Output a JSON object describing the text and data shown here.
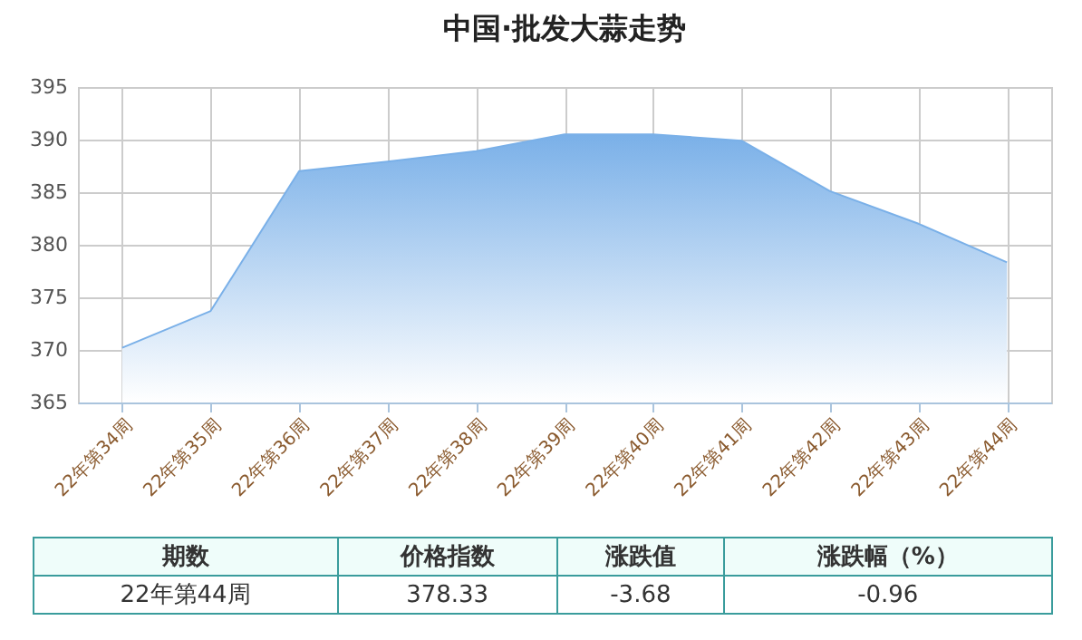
{
  "chart_data": {
    "type": "area",
    "title": "中国·批发大蒜走势",
    "categories": [
      "22年第34周",
      "22年第35周",
      "22年第36周",
      "22年第37周",
      "22年第38周",
      "22年第39周",
      "22年第40周",
      "22年第41周",
      "22年第42周",
      "22年第43周",
      "22年第44周"
    ],
    "values": [
      370.2,
      373.7,
      387.0,
      387.9,
      388.9,
      390.5,
      390.5,
      389.9,
      385.1,
      382.0,
      378.33
    ],
    "color": "#7ab0e8",
    "ylim": [
      365,
      395
    ],
    "yticks": [
      365,
      370,
      375,
      380,
      385,
      390,
      395
    ],
    "grid": true,
    "annotations": [
      "期数",
      "价格指数",
      "涨跌值",
      "涨跌幅（%）",
      "22年第44周",
      "378.33",
      "-3.68",
      "-0.96"
    ]
  }
}
